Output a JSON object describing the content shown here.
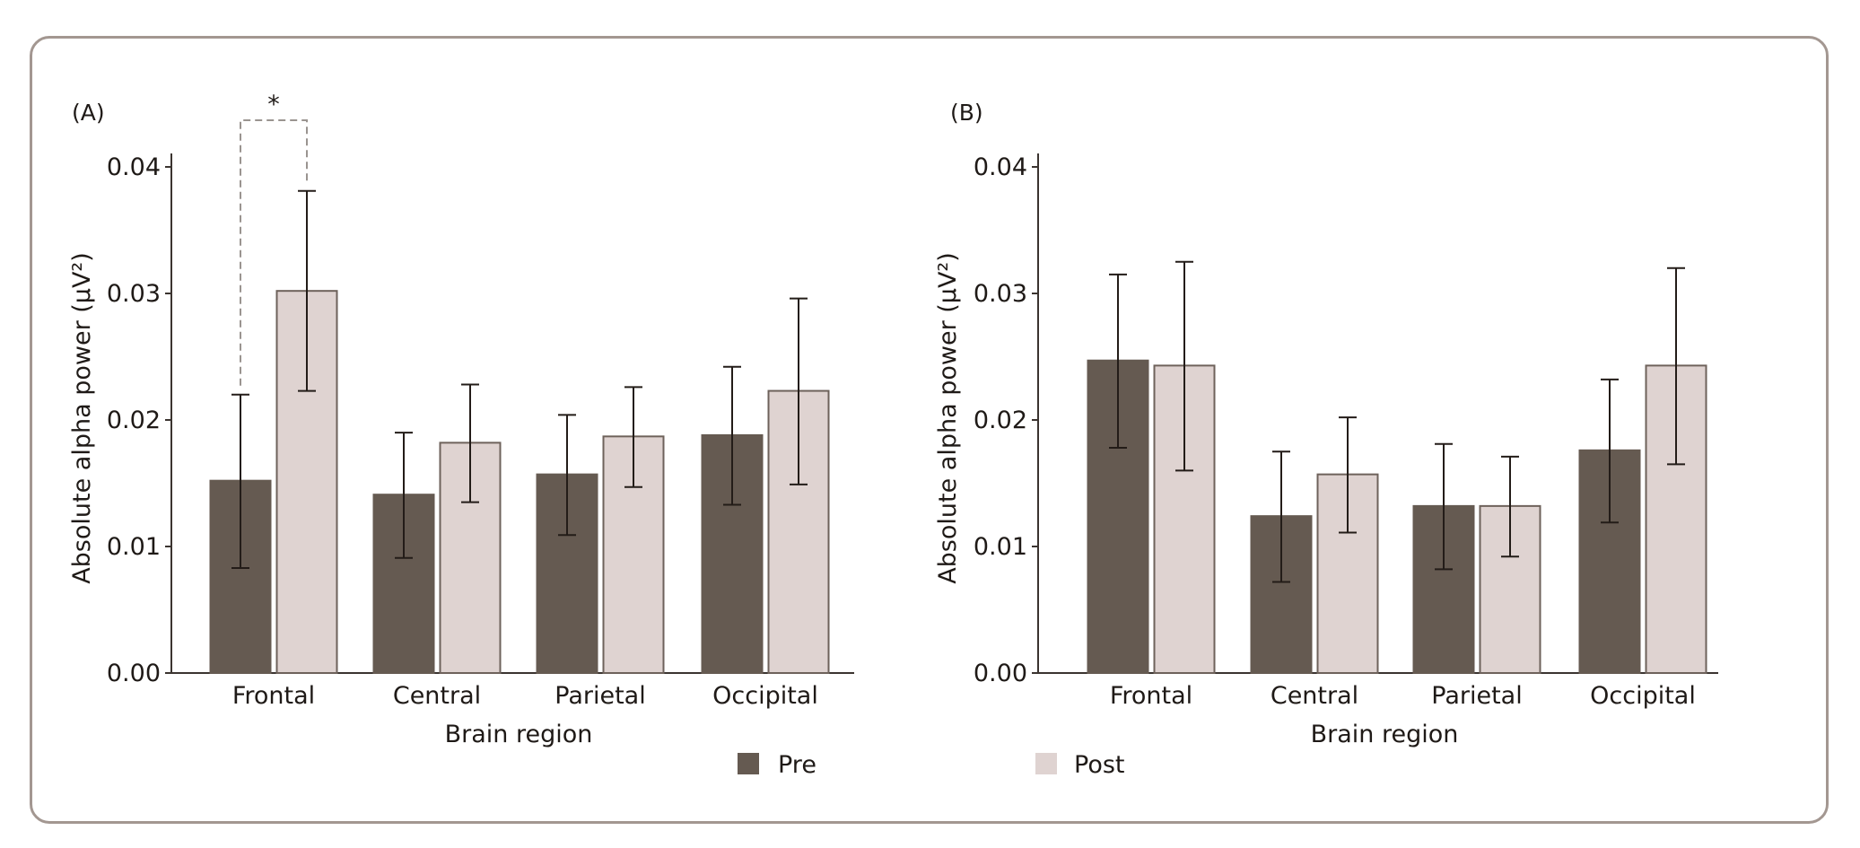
{
  "chart_data": [
    {
      "type": "bar",
      "panel_label": "(A)",
      "xlabel": "Brain region",
      "ylabel": "Absolute alpha power (µV²)",
      "categories": [
        "Frontal",
        "Central",
        "Parietal",
        "Occipital"
      ],
      "ylim": [
        0,
        0.04
      ],
      "yticks": [
        "0.00",
        "0.01",
        "0.02",
        "0.03",
        "0.04"
      ],
      "series": [
        {
          "name": "Pre",
          "values": [
            0.0152,
            0.0141,
            0.0157,
            0.0188
          ],
          "error_low": [
            0.0083,
            0.0091,
            0.0109,
            0.0133
          ],
          "error_high": [
            0.022,
            0.019,
            0.0204,
            0.0242
          ]
        },
        {
          "name": "Post",
          "values": [
            0.0302,
            0.0182,
            0.0187,
            0.0223
          ],
          "error_low": [
            0.0223,
            0.0135,
            0.0147,
            0.0149
          ],
          "error_high": [
            0.0381,
            0.0228,
            0.0226,
            0.0296
          ]
        }
      ],
      "annotations": [
        {
          "text": "*",
          "category": "Frontal",
          "type": "significance-bracket"
        }
      ]
    },
    {
      "type": "bar",
      "panel_label": "(B)",
      "xlabel": "Brain region",
      "ylabel": "Absolute alpha power (µV²)",
      "categories": [
        "Frontal",
        "Central",
        "Parietal",
        "Occipital"
      ],
      "ylim": [
        0,
        0.04
      ],
      "yticks": [
        "0.00",
        "0.01",
        "0.02",
        "0.03",
        "0.04"
      ],
      "series": [
        {
          "name": "Pre",
          "values": [
            0.0247,
            0.0124,
            0.0132,
            0.0176
          ],
          "error_low": [
            0.0178,
            0.0072,
            0.0082,
            0.0119
          ],
          "error_high": [
            0.0315,
            0.0175,
            0.0181,
            0.0232
          ]
        },
        {
          "name": "Post",
          "values": [
            0.0243,
            0.0157,
            0.0132,
            0.0243
          ],
          "error_low": [
            0.016,
            0.0111,
            0.0092,
            0.0165
          ],
          "error_high": [
            0.0325,
            0.0202,
            0.0171,
            0.032
          ]
        }
      ],
      "annotations": []
    }
  ],
  "legend": {
    "items": [
      {
        "label": "Pre",
        "color": "#655a51"
      },
      {
        "label": "Post",
        "color": "#dfd3d1"
      }
    ]
  },
  "colors": {
    "pre": "#655a51",
    "post": "#dfd3d1",
    "post_stroke": "#6e625b",
    "frame": "#a39791",
    "axis": "#3b3430"
  }
}
